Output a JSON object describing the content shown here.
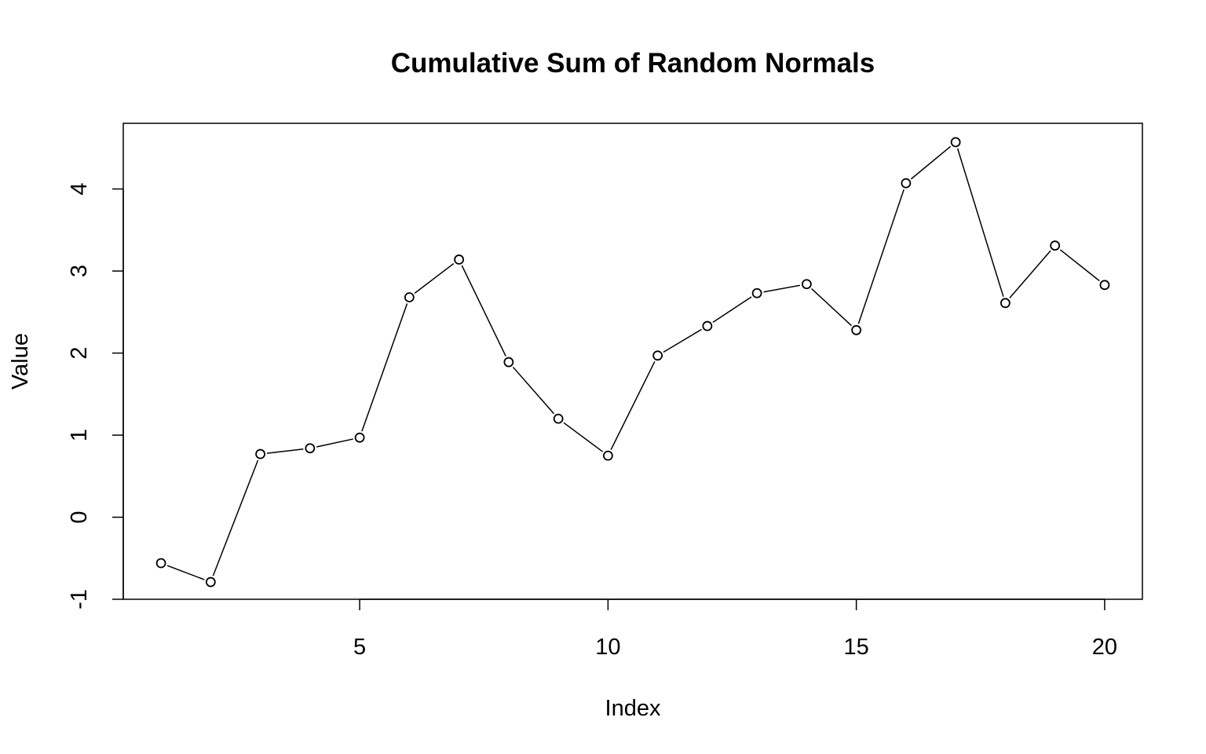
{
  "chart_data": {
    "type": "line",
    "title": "Cumulative Sum of Random Normals",
    "xlabel": "Index",
    "ylabel": "Value",
    "x": [
      1,
      2,
      3,
      4,
      5,
      6,
      7,
      8,
      9,
      10,
      11,
      12,
      13,
      14,
      15,
      16,
      17,
      18,
      19,
      20
    ],
    "series": [
      {
        "values": [
          -0.56,
          -0.79,
          0.77,
          0.84,
          0.97,
          2.68,
          3.14,
          1.89,
          1.2,
          0.75,
          1.97,
          2.33,
          2.73,
          2.84,
          2.28,
          4.07,
          4.57,
          2.61,
          3.31,
          2.83
        ]
      }
    ],
    "xlim": [
      0.24,
      20.76
    ],
    "ylim": [
      -1.0,
      4.8
    ],
    "xticks": [
      5,
      10,
      15,
      20
    ],
    "xtick_labels": [
      "5",
      "10",
      "15",
      "20"
    ],
    "yticks": [
      -1,
      0,
      1,
      2,
      3,
      4
    ],
    "ytick_labels": [
      "-1",
      "0",
      "1",
      "2",
      "3",
      "4"
    ],
    "grid": false,
    "marker": "open-circle",
    "line_color": "#000000"
  }
}
